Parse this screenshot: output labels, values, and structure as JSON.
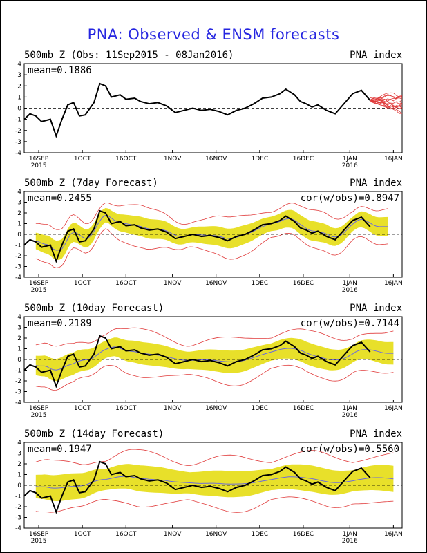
{
  "page": {
    "title": "PNA: Observed & ENSM forecasts"
  },
  "colors": {
    "title": "#2525e0",
    "observed": "#000000",
    "ensemble_mean": "#6a6ae0",
    "spread_fill": "#e8e02a",
    "ensemble_members": "#e03a3a"
  },
  "chart_data": [
    {
      "type": "line",
      "panel_id": "obs",
      "title_left": "500mb Z (Obs: 11Sep2015 - 08Jan2016)",
      "title_right": "PNA index",
      "mean_label": "mean=0.1886",
      "cor_label": "",
      "ylim": [
        -4,
        4
      ],
      "yticks": [
        -4,
        -3,
        -2,
        -1,
        0,
        1,
        2,
        3,
        4
      ],
      "xlim_days_from_11Sep2015": [
        0,
        130
      ],
      "xtick_labels": [
        {
          "label": "16SEP",
          "sub": "2015"
        },
        {
          "label": "1OCT",
          "sub": ""
        },
        {
          "label": "16OCT",
          "sub": ""
        },
        {
          "label": "1NOV",
          "sub": ""
        },
        {
          "label": "16NOV",
          "sub": ""
        },
        {
          "label": "1DEC",
          "sub": ""
        },
        {
          "label": "16DEC",
          "sub": ""
        },
        {
          "label": "1JAN",
          "sub": "2016"
        },
        {
          "label": "16JAN",
          "sub": ""
        }
      ],
      "observed": {
        "x_dates": [
          "11Sep",
          "13Sep",
          "15Sep",
          "17Sep",
          "20Sep",
          "22Sep",
          "24Sep",
          "26Sep",
          "28Sep",
          "30Sep",
          "02Oct",
          "05Oct",
          "07Oct",
          "09Oct",
          "11Oct",
          "14Oct",
          "16Oct",
          "19Oct",
          "21Oct",
          "24Oct",
          "27Oct",
          "30Oct",
          "02Nov",
          "05Nov",
          "08Nov",
          "11Nov",
          "14Nov",
          "17Nov",
          "20Nov",
          "23Nov",
          "26Nov",
          "29Nov",
          "02Dec",
          "05Dec",
          "08Dec",
          "10Dec",
          "13Dec",
          "15Dec",
          "17Dec",
          "19Dec",
          "21Dec",
          "24Dec",
          "27Dec",
          "30Dec",
          "02Jan",
          "05Jan",
          "08Jan"
        ],
        "y": [
          -1.0,
          -0.5,
          -0.7,
          -1.2,
          -1.0,
          -2.5,
          -1.0,
          0.3,
          0.5,
          -0.7,
          -0.6,
          0.5,
          2.2,
          2.0,
          1.0,
          1.2,
          0.8,
          0.9,
          0.6,
          0.4,
          0.5,
          0.2,
          -0.4,
          -0.2,
          0.0,
          -0.2,
          -0.1,
          -0.3,
          -0.6,
          -0.2,
          0.0,
          0.4,
          0.9,
          1.0,
          1.3,
          1.7,
          1.2,
          0.6,
          0.4,
          0.1,
          0.3,
          -0.2,
          -0.5,
          0.4,
          1.3,
          1.6,
          0.7
        ]
      },
      "forecast_plume_note": "ensemble members shown after 08Jan2016"
    },
    {
      "type": "line",
      "panel_id": "d7",
      "title_left": "500mb Z (7day Forecast)",
      "title_right": "PNA index",
      "mean_label": "mean=0.2455",
      "cor_label": "cor(w/obs)=0.8947",
      "ylim": [
        -4,
        4
      ],
      "yticks": [
        -4,
        -3,
        -2,
        -1,
        0,
        1,
        2,
        3,
        4
      ],
      "xtick_labels": [
        {
          "label": "16SEP",
          "sub": "2015"
        },
        {
          "label": "1OCT",
          "sub": ""
        },
        {
          "label": "16OCT",
          "sub": ""
        },
        {
          "label": "1NOV",
          "sub": ""
        },
        {
          "label": "16NOV",
          "sub": ""
        },
        {
          "label": "1DEC",
          "sub": ""
        },
        {
          "label": "16DEC",
          "sub": ""
        },
        {
          "label": "1JAN",
          "sub": "2016"
        },
        {
          "label": "16JAN",
          "sub": ""
        }
      ]
    },
    {
      "type": "line",
      "panel_id": "d10",
      "title_left": "500mb Z (10day Forecast)",
      "title_right": "PNA index",
      "mean_label": "mean=0.2189",
      "cor_label": "cor(w/obs)=0.7144",
      "ylim": [
        -4,
        4
      ],
      "yticks": [
        -4,
        -3,
        -2,
        -1,
        0,
        1,
        2,
        3,
        4
      ],
      "xtick_labels": [
        {
          "label": "16SEP",
          "sub": "2015"
        },
        {
          "label": "1OCT",
          "sub": ""
        },
        {
          "label": "16OCT",
          "sub": ""
        },
        {
          "label": "1NOV",
          "sub": ""
        },
        {
          "label": "16NOV",
          "sub": ""
        },
        {
          "label": "1DEC",
          "sub": ""
        },
        {
          "label": "16DEC",
          "sub": ""
        },
        {
          "label": "1JAN",
          "sub": "2016"
        },
        {
          "label": "16JAN",
          "sub": ""
        }
      ]
    },
    {
      "type": "line",
      "panel_id": "d14",
      "title_left": "500mb Z (14day Forecast)",
      "title_right": "PNA index",
      "mean_label": "mean=0.1947",
      "cor_label": "cor(w/obs)=0.5560",
      "ylim": [
        -4,
        4
      ],
      "yticks": [
        -4,
        -3,
        -2,
        -1,
        0,
        1,
        2,
        3,
        4
      ],
      "xtick_labels": [
        {
          "label": "16SEP",
          "sub": "2015"
        },
        {
          "label": "1OCT",
          "sub": ""
        },
        {
          "label": "16OCT",
          "sub": ""
        },
        {
          "label": "1NOV",
          "sub": ""
        },
        {
          "label": "16NOV",
          "sub": ""
        },
        {
          "label": "1DEC",
          "sub": ""
        },
        {
          "label": "16DEC",
          "sub": ""
        },
        {
          "label": "1JAN",
          "sub": "2016"
        },
        {
          "label": "16JAN",
          "sub": ""
        }
      ]
    }
  ]
}
